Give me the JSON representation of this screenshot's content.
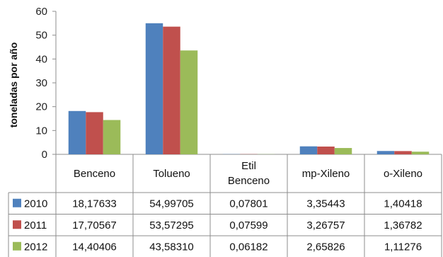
{
  "chart_data": {
    "type": "bar",
    "title": "",
    "xlabel": "",
    "ylabel": "toneladas por año",
    "ylim": [
      0,
      60
    ],
    "yticks": [
      0,
      10,
      20,
      30,
      40,
      50,
      60
    ],
    "grid": false,
    "legend": "data-table-left",
    "categories": [
      "Benceno",
      "Tolueno",
      "Etil Benceno",
      "mp-Xileno",
      "o-Xileno"
    ],
    "series": [
      {
        "name": "2010",
        "color": "#4F81BD",
        "values": [
          18.17633,
          54.99705,
          0.07801,
          3.35443,
          1.40418
        ],
        "labels": [
          "18,17633",
          "54,99705",
          "0,07801",
          "3,35443",
          "1,40418"
        ]
      },
      {
        "name": "2011",
        "color": "#C0504D",
        "values": [
          17.70567,
          53.57295,
          0.07599,
          3.26757,
          1.36782
        ],
        "labels": [
          "17,70567",
          "53,57295",
          "0,07599",
          "3,26757",
          "1,36782"
        ]
      },
      {
        "name": "2012",
        "color": "#9BBB59",
        "values": [
          14.40406,
          43.5831,
          0.06182,
          2.65826,
          1.11276
        ],
        "labels": [
          "14,40406",
          "43,58310",
          "0,06182",
          "2,65826",
          "1,11276"
        ]
      }
    ]
  }
}
